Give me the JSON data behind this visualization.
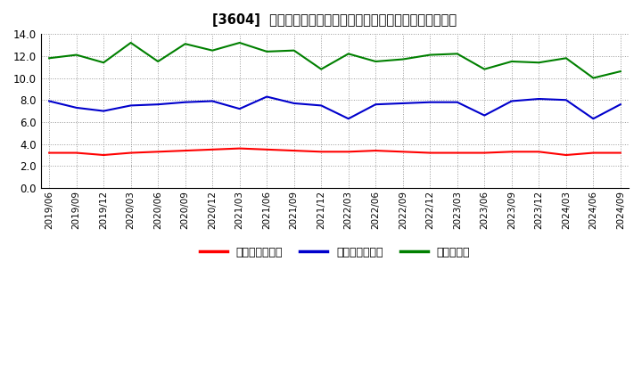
{
  "title": "[3604]  売上債権回転率、買入債務回転率、在庫回転率の推移",
  "xlabels": [
    "2019/06",
    "2019/09",
    "2019/12",
    "2020/03",
    "2020/06",
    "2020/09",
    "2020/12",
    "2021/03",
    "2021/06",
    "2021/09",
    "2021/12",
    "2022/03",
    "2022/06",
    "2022/09",
    "2022/12",
    "2023/03",
    "2023/06",
    "2023/09",
    "2023/12",
    "2024/03",
    "2024/06",
    "2024/09"
  ],
  "uriken": [
    3.2,
    3.2,
    3.0,
    3.2,
    3.3,
    3.4,
    3.5,
    3.6,
    3.5,
    3.4,
    3.3,
    3.3,
    3.4,
    3.3,
    3.2,
    3.2,
    3.2,
    3.3,
    3.3,
    3.0,
    3.2,
    3.2
  ],
  "kaiire": [
    7.9,
    7.3,
    7.0,
    7.5,
    7.6,
    7.8,
    7.9,
    7.2,
    8.3,
    7.7,
    7.5,
    6.3,
    7.6,
    7.7,
    7.8,
    7.8,
    6.6,
    7.9,
    8.1,
    8.0,
    6.3,
    7.6
  ],
  "zaiko": [
    11.8,
    12.1,
    11.4,
    13.2,
    11.5,
    13.1,
    12.5,
    13.2,
    12.4,
    12.5,
    10.8,
    12.2,
    11.5,
    11.7,
    12.1,
    12.2,
    10.8,
    11.5,
    11.4,
    11.8,
    10.0,
    10.6
  ],
  "uriken_label": "売上債権回転率",
  "kaiire_label": "買入債務回転率",
  "zaiko_label": "在庫回転率",
  "ylim": [
    0.0,
    14.0
  ],
  "yticks": [
    0.0,
    2.0,
    4.0,
    6.0,
    8.0,
    10.0,
    12.0,
    14.0
  ],
  "uriken_color": "#ff0000",
  "kaiire_color": "#0000cc",
  "zaiko_color": "#008000",
  "bg_color": "#ffffff",
  "grid_color": "#999999"
}
